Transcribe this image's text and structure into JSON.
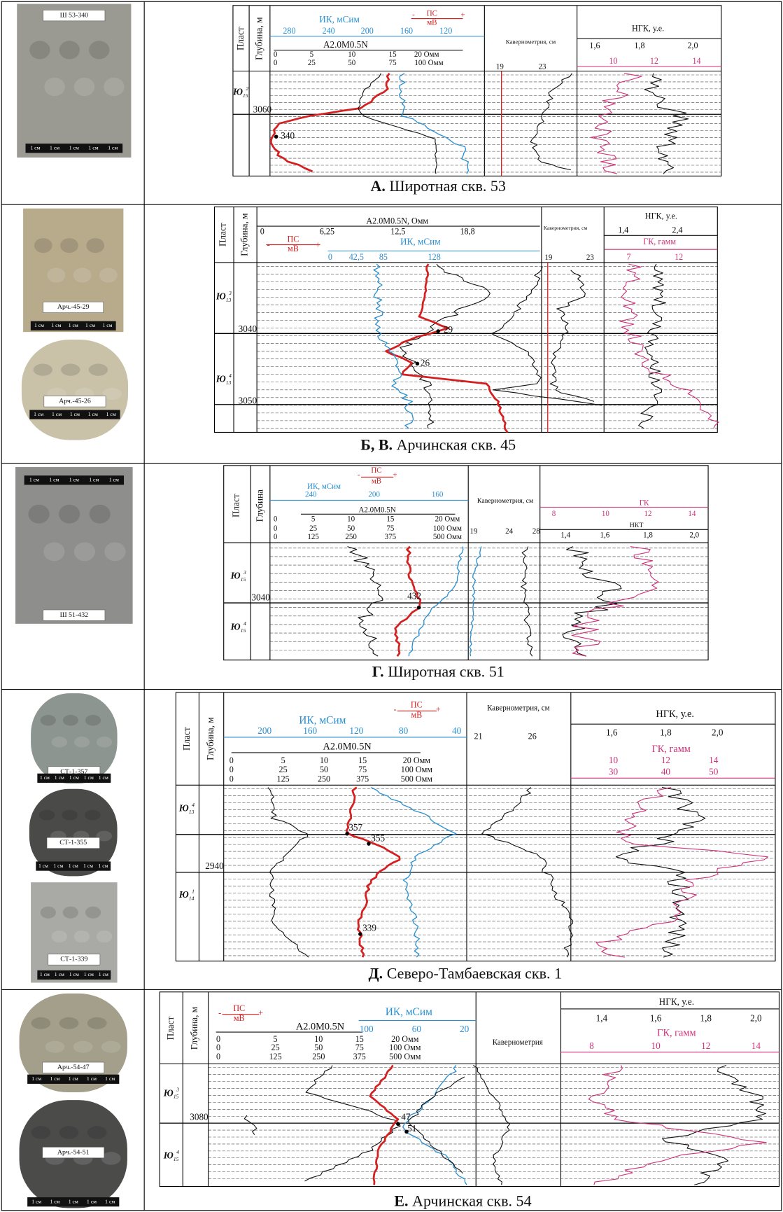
{
  "scale_label": "1 см",
  "panels": [
    {
      "photos": [
        {
          "label": "Ш 53-340"
        }
      ],
      "caption": {
        "letter": "А.",
        "text": "Широтная скв. 53"
      },
      "formation_header": "Пласт",
      "depth_header": "Глубина, м",
      "header_texts": [
        "ИК, мСим",
        "280",
        "240",
        "200",
        "160",
        "120",
        "ПС",
        "мВ",
        "-",
        "+",
        "A2.0M0.5N",
        "0",
        "5",
        "10",
        "15",
        "20 Омм",
        "0",
        "25",
        "50",
        "75",
        "100 Омм",
        "Кавернометрия, см",
        "19",
        "23",
        "НГК, у.е.",
        "1,6",
        "1,8",
        "2,0",
        "10",
        "12",
        "14"
      ],
      "depths": [
        "3060"
      ],
      "formations": [
        {
          "name": "Ю",
          "sub": "15",
          "sup": "2"
        }
      ],
      "samples": [
        "340"
      ]
    },
    {
      "photos": [
        {
          "label": "Арч.-45-29"
        },
        {
          "label": "Арч.-45-26"
        }
      ],
      "caption": {
        "letter": "Б, В.",
        "text": "Арчинская скв. 45"
      },
      "formation_header": "Пласт",
      "depth_header": "Глубина, м",
      "header_texts": [
        "A2.0M0.5N, Омм",
        "0",
        "6,25",
        "12,5",
        "18,8",
        "ПС",
        "мВ",
        "-",
        "+",
        "ИК, мСим",
        "0",
        "42,5",
        "85",
        "128",
        "Кавернометрия, см",
        "19",
        "23",
        "НГК, у.е.",
        "1,4",
        "2,4",
        "ГК, гамм",
        "7",
        "12"
      ],
      "depths": [
        "3040",
        "3050"
      ],
      "formations": [
        {
          "name": "Ю",
          "sub": "13",
          "sup": "3"
        },
        {
          "name": "Ю",
          "sub": "13",
          "sup": "4"
        }
      ],
      "samples": [
        "29",
        "26"
      ]
    },
    {
      "photos": [
        {
          "label": "Ш 51-432"
        }
      ],
      "caption": {
        "letter": "Г.",
        "text": "Широтная скв. 51"
      },
      "formation_header": "Пласт",
      "depth_header": "Глубина",
      "header_texts": [
        "ПС",
        "мВ",
        "-",
        "+",
        "ИК, мСим",
        "240",
        "200",
        "160",
        "A2.0M0.5N",
        "0",
        "5",
        "10",
        "15",
        "20 Омм",
        "0",
        "25",
        "50",
        "75",
        "100 Омм",
        "0",
        "125",
        "250",
        "375",
        "500 Омм",
        "Кавернометрия, см",
        "19",
        "24",
        "28",
        "ГК",
        "8",
        "10",
        "12",
        "14",
        "НКТ",
        "1,4",
        "1,6",
        "1,8",
        "2,0"
      ],
      "depths": [
        "3040"
      ],
      "formations": [
        {
          "name": "Ю",
          "sub": "15",
          "sup": "3"
        },
        {
          "name": "Ю",
          "sub": "15",
          "sup": "4"
        }
      ],
      "samples": [
        "432"
      ]
    },
    {
      "photos": [
        {
          "label": "СТ-1-357"
        },
        {
          "label": "СТ-1-355"
        },
        {
          "label": "СТ-1-339"
        }
      ],
      "caption": {
        "letter": "Д.",
        "text": "Северо-Тамбаевская скв. 1"
      },
      "formation_header": "Пласт",
      "depth_header": "Глубина, м",
      "header_texts": [
        "ПС",
        "мВ",
        "-",
        "+",
        "ИК, мСим",
        "200",
        "160",
        "120",
        "80",
        "40",
        "A2.0M0.5N",
        "0",
        "5",
        "10",
        "15",
        "20 Омм",
        "0",
        "25",
        "50",
        "75",
        "100 Омм",
        "0",
        "125",
        "250",
        "375",
        "500 Омм",
        "Кавернометрия, см",
        "21",
        "26",
        "НГК, у.е.",
        "1,6",
        "1,8",
        "2,0",
        "ГК, гамм",
        "10",
        "12",
        "14",
        "30",
        "40",
        "50"
      ],
      "depths": [
        "2940"
      ],
      "formations": [
        {
          "name": "Ю",
          "sub": "13",
          "sup": "4"
        },
        {
          "name": "Ю",
          "sub": "14",
          "sup": "1"
        }
      ],
      "samples": [
        "357",
        "355",
        "339"
      ]
    },
    {
      "photos": [
        {
          "label": "Арч.-54-47"
        },
        {
          "label": "Арч.-54-51"
        }
      ],
      "caption": {
        "letter": "Е.",
        "text": "Арчинская скв. 54"
      },
      "formation_header": "Пласт",
      "depth_header": "Глубина, м",
      "header_texts": [
        "ПС",
        "мВ",
        "-",
        "+",
        "A2.0M0.5N",
        "0",
        "5",
        "10",
        "15",
        "20 Омм",
        "0",
        "25",
        "50",
        "75",
        "100 Омм",
        "0",
        "125",
        "250",
        "375",
        "500 Омм",
        "ИК, мСим",
        "100",
        "60",
        "20",
        "Кавернометрия",
        "НГК, у.е.",
        "1,4",
        "1,6",
        "1,8",
        "2,0",
        "ГК, гамм",
        "8",
        "10",
        "12",
        "14"
      ],
      "depths": [
        "3080"
      ],
      "formations": [
        {
          "name": "Ю",
          "sub": "15",
          "sup": "3"
        },
        {
          "name": "Ю",
          "sub": "15",
          "sup": "4"
        }
      ],
      "samples": [
        "47",
        "51"
      ]
    }
  ]
}
